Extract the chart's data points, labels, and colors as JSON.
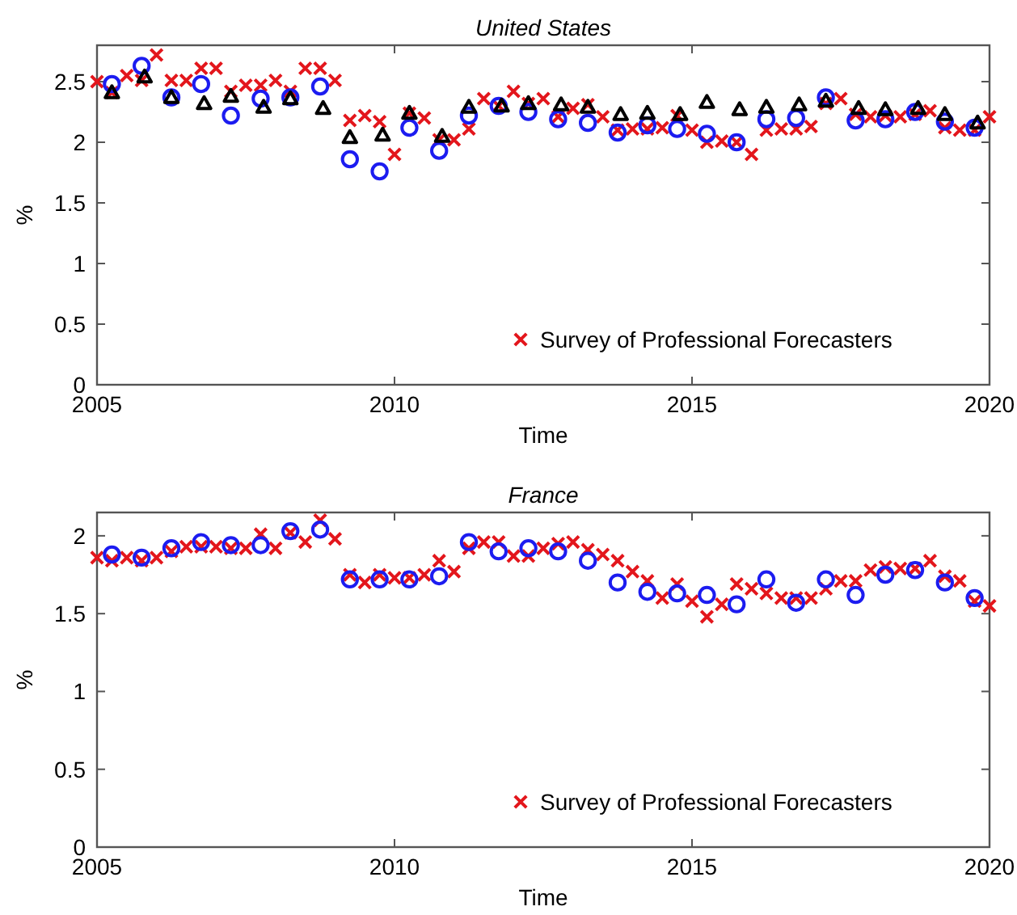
{
  "chart_data": [
    {
      "type": "scatter",
      "title": "United States",
      "xlabel": "Time",
      "ylabel": "%",
      "xlim": [
        2005,
        2020
      ],
      "xticks": [
        2005,
        2010,
        2015,
        2020
      ],
      "ylim": [
        0,
        2.8
      ],
      "yticks": [
        0,
        0.5,
        1,
        1.5,
        2,
        2.5
      ],
      "grid": false,
      "legend": "bottom right",
      "series": [
        {
          "name": "Survey of Professional Forecasters",
          "color": "#e3161c",
          "marker": "cross",
          "x": [
            2005,
            2005.25,
            2005.5,
            2005.75,
            2006,
            2006.25,
            2006.5,
            2006.75,
            2007,
            2007.25,
            2007.5,
            2007.75,
            2008,
            2008.25,
            2008.5,
            2008.75,
            2009,
            2009.25,
            2009.5,
            2009.75,
            2010,
            2010.25,
            2010.5,
            2010.75,
            2011,
            2011.25,
            2011.5,
            2011.75,
            2012,
            2012.25,
            2012.5,
            2012.75,
            2013,
            2013.25,
            2013.5,
            2013.75,
            2014,
            2014.25,
            2014.5,
            2014.75,
            2015,
            2015.25,
            2015.5,
            2015.75,
            2016,
            2016.25,
            2016.5,
            2016.75,
            2017,
            2017.25,
            2017.5,
            2017.75,
            2018,
            2018.25,
            2018.5,
            2018.75,
            2019,
            2019.25,
            2019.5,
            2019.75,
            2020
          ],
          "values": [
            2.5,
            2.41,
            2.55,
            2.51,
            2.72,
            2.51,
            2.51,
            2.61,
            2.61,
            2.42,
            2.47,
            2.47,
            2.51,
            2.42,
            2.61,
            2.61,
            2.51,
            2.18,
            2.22,
            2.17,
            1.9,
            2.24,
            2.2,
            2.02,
            2.02,
            2.11,
            2.36,
            2.3,
            2.42,
            2.32,
            2.36,
            2.21,
            2.28,
            2.31,
            2.21,
            2.1,
            2.11,
            2.11,
            2.12,
            2.22,
            2.1,
            2,
            2.01,
            2,
            1.9,
            2.1,
            2.11,
            2.11,
            2.13,
            2.32,
            2.36,
            2.23,
            2.21,
            2.22,
            2.21,
            2.23,
            2.26,
            2.12,
            2.1,
            2.1,
            2.21
          ]
        },
        {
          "color": "#1c1cf0",
          "marker": "circle",
          "x": [
            2005.25,
            2005.75,
            2006.25,
            2006.75,
            2007.25,
            2007.75,
            2008.25,
            2008.75,
            2009.25,
            2009.75,
            2010.25,
            2010.75,
            2011.25,
            2011.75,
            2012.25,
            2012.75,
            2013.25,
            2013.75,
            2014.25,
            2014.75,
            2015.25,
            2015.75,
            2016.25,
            2016.75,
            2017.25,
            2017.75,
            2018.25,
            2018.75,
            2019.25,
            2019.75
          ],
          "values": [
            2.48,
            2.63,
            2.37,
            2.48,
            2.22,
            2.36,
            2.37,
            2.46,
            1.86,
            1.76,
            2.12,
            1.93,
            2.22,
            2.3,
            2.25,
            2.19,
            2.16,
            2.08,
            2.14,
            2.11,
            2.07,
            2,
            2.19,
            2.2,
            2.37,
            2.18,
            2.19,
            2.25,
            2.17,
            2.12
          ]
        },
        {
          "color": "#000000",
          "marker": "triangle",
          "x": [
            2005.25,
            2005.8,
            2006.25,
            2006.8,
            2007.25,
            2007.8,
            2008.25,
            2008.8,
            2009.25,
            2009.8,
            2010.25,
            2010.8,
            2011.25,
            2011.8,
            2012.25,
            2012.8,
            2013.25,
            2013.8,
            2014.25,
            2014.8,
            2015.25,
            2015.8,
            2016.25,
            2016.8,
            2017.25,
            2017.8,
            2018.25,
            2018.8,
            2019.25,
            2019.8
          ],
          "values": [
            2.41,
            2.54,
            2.37,
            2.32,
            2.38,
            2.29,
            2.36,
            2.28,
            2.04,
            2.06,
            2.24,
            2.05,
            2.29,
            2.3,
            2.32,
            2.31,
            2.29,
            2.23,
            2.24,
            2.23,
            2.33,
            2.27,
            2.29,
            2.31,
            2.34,
            2.28,
            2.27,
            2.28,
            2.23,
            2.16
          ]
        }
      ]
    },
    {
      "type": "scatter",
      "title": "France",
      "xlabel": "Time",
      "ylabel": "%",
      "xlim": [
        2005,
        2020
      ],
      "xticks": [
        2005,
        2010,
        2015,
        2020
      ],
      "ylim": [
        0,
        2.15
      ],
      "yticks": [
        0,
        0.5,
        1,
        1.5,
        2
      ],
      "grid": false,
      "legend": "bottom right",
      "series": [
        {
          "name": "Survey of Professional Forecasters",
          "color": "#e3161c",
          "marker": "cross",
          "x": [
            2005,
            2005.25,
            2005.5,
            2005.75,
            2006,
            2006.25,
            2006.5,
            2006.75,
            2007,
            2007.25,
            2007.5,
            2007.75,
            2008,
            2008.25,
            2008.5,
            2008.75,
            2009,
            2009.25,
            2009.5,
            2009.75,
            2010,
            2010.25,
            2010.5,
            2010.75,
            2011,
            2011.25,
            2011.5,
            2011.75,
            2012,
            2012.25,
            2012.5,
            2012.75,
            2013,
            2013.25,
            2013.5,
            2013.75,
            2014,
            2014.25,
            2014.5,
            2014.75,
            2015,
            2015.25,
            2015.5,
            2015.75,
            2016,
            2016.25,
            2016.5,
            2016.75,
            2017,
            2017.25,
            2017.5,
            2017.75,
            2018,
            2018.25,
            2018.5,
            2018.75,
            2019,
            2019.25,
            2019.5,
            2019.75,
            2020
          ],
          "values": [
            1.86,
            1.84,
            1.86,
            1.84,
            1.86,
            1.9,
            1.93,
            1.93,
            1.93,
            1.92,
            1.92,
            2.01,
            1.92,
            2.02,
            1.96,
            2.1,
            1.98,
            1.75,
            1.7,
            1.75,
            1.73,
            1.73,
            1.75,
            1.84,
            1.77,
            1.92,
            1.96,
            1.96,
            1.87,
            1.87,
            1.92,
            1.95,
            1.96,
            1.91,
            1.88,
            1.84,
            1.77,
            1.71,
            1.6,
            1.69,
            1.58,
            1.48,
            1.56,
            1.69,
            1.66,
            1.63,
            1.6,
            1.6,
            1.6,
            1.66,
            1.71,
            1.71,
            1.78,
            1.8,
            1.79,
            1.79,
            1.84,
            1.74,
            1.71,
            1.58,
            1.55
          ]
        },
        {
          "color": "#1c1cf0",
          "marker": "circle",
          "x": [
            2005.25,
            2005.75,
            2006.25,
            2006.75,
            2007.25,
            2007.75,
            2008.25,
            2008.75,
            2009.25,
            2009.75,
            2010.25,
            2010.75,
            2011.25,
            2011.75,
            2012.25,
            2012.75,
            2013.25,
            2013.75,
            2014.25,
            2014.75,
            2015.25,
            2015.75,
            2016.25,
            2016.75,
            2017.25,
            2017.75,
            2018.25,
            2018.75,
            2019.25,
            2019.75
          ],
          "values": [
            1.88,
            1.86,
            1.92,
            1.96,
            1.94,
            1.94,
            2.03,
            2.04,
            1.72,
            1.72,
            1.72,
            1.74,
            1.96,
            1.9,
            1.92,
            1.9,
            1.84,
            1.7,
            1.64,
            1.63,
            1.62,
            1.56,
            1.72,
            1.57,
            1.72,
            1.62,
            1.75,
            1.78,
            1.7,
            1.6
          ]
        }
      ]
    }
  ]
}
